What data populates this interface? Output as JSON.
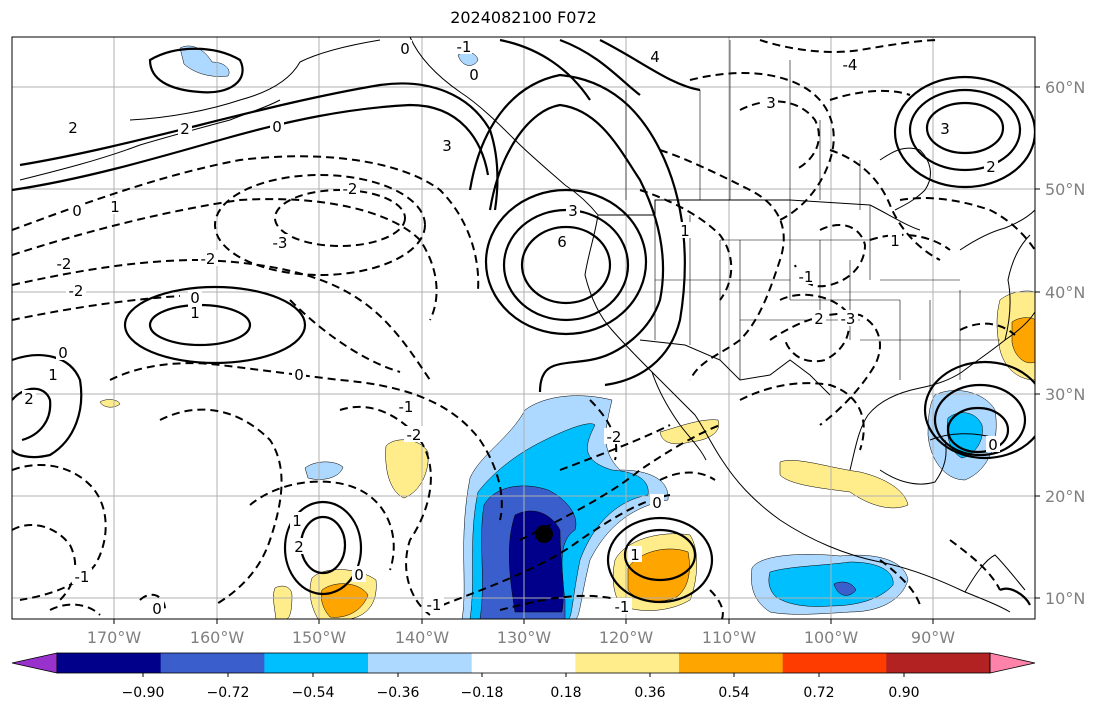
{
  "title": "2024082100 F072",
  "map": {
    "lon_ticks": [
      "170°W",
      "160°W",
      "150°W",
      "140°W",
      "130°W",
      "120°W",
      "110°W",
      "100°W",
      "90°W"
    ],
    "lat_ticks": [
      "60°N",
      "50°N",
      "40°N",
      "30°N",
      "20°N",
      "10°N"
    ],
    "extent": {
      "lon": [
        -180,
        -80
      ],
      "lat": [
        8,
        65
      ]
    },
    "grid": true,
    "coastlines": true
  },
  "colorbar": {
    "tick_labels": [
      "−0.90",
      "−0.72",
      "−0.54",
      "−0.36",
      "−0.18",
      "0.18",
      "0.36",
      "0.54",
      "0.72",
      "0.90"
    ],
    "colors": [
      "#9932cc",
      "#00008b",
      "#3a5fcd",
      "#00bfff",
      "#add8ff",
      "#ffffff",
      "#ffec8b",
      "#ffa500",
      "#ff3c00",
      "#b22222",
      "#ff82ab"
    ],
    "extend": "both"
  },
  "contour_labels": [
    "-1",
    "0",
    "4",
    "-4",
    "2",
    "-2",
    "3",
    "-3",
    "6",
    "1",
    "0",
    "2",
    "-2",
    "-2",
    "0",
    "1",
    "0",
    "1",
    "-1",
    "-2",
    "2",
    "1",
    "2",
    "0",
    "-1",
    "0",
    "1",
    "0",
    "-1",
    "-3",
    "3",
    "-2",
    "2",
    "3",
    "0",
    "-1",
    "0",
    "1",
    "2",
    "-1",
    "0",
    "0",
    "3",
    "-2",
    "1"
  ]
}
